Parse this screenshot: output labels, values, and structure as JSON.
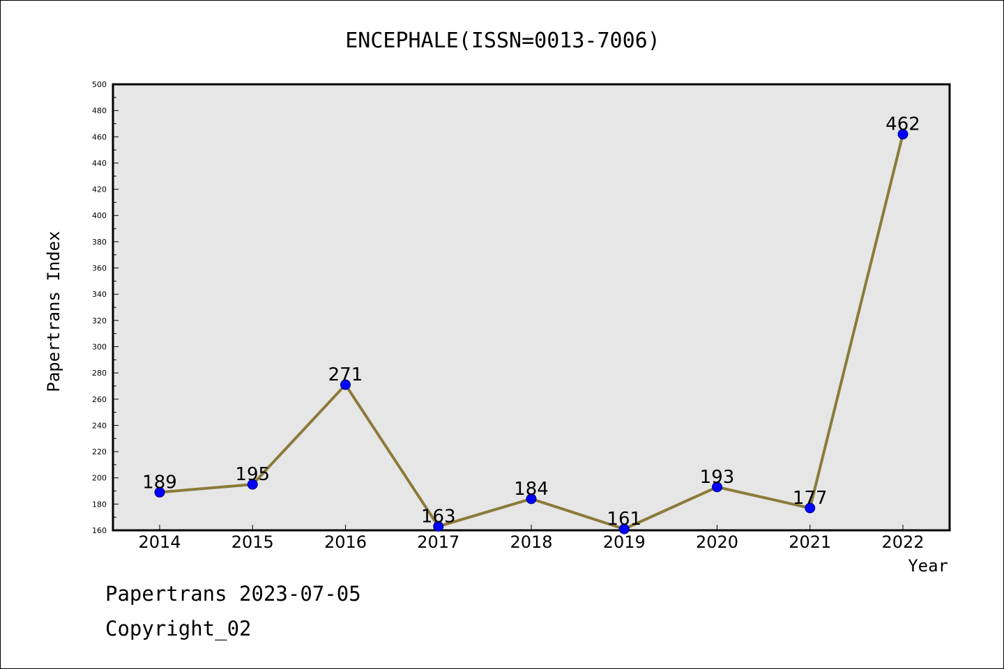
{
  "chart_data": {
    "type": "line",
    "title": "ENCEPHALE(ISSN=0013-7006)",
    "xlabel": "Year",
    "ylabel": "Papertrans Index",
    "categories": [
      "2014",
      "2015",
      "2016",
      "2017",
      "2018",
      "2019",
      "2020",
      "2021",
      "2022"
    ],
    "series": [
      {
        "values": [
          189,
          195,
          271,
          163,
          184,
          161,
          193,
          177,
          462
        ]
      }
    ],
    "data_labels": [
      "189",
      "195",
      "271",
      "163",
      "184",
      "161",
      "193",
      "177",
      "462"
    ],
    "ylim": [
      160,
      500
    ],
    "yticks": [
      "160",
      "180",
      "200",
      "220",
      "240",
      "260",
      "280",
      "300",
      "320",
      "340",
      "360",
      "380",
      "400",
      "420",
      "440",
      "460",
      "480",
      "500"
    ],
    "grid": false,
    "legend": "none",
    "colors": {
      "plot_bg": "#e6e6e6",
      "line": "#8b7a3a",
      "marker": "#0000ff"
    }
  },
  "footer": {
    "line1": "Papertrans 2023-07-05",
    "line2": "Copyright_02"
  }
}
